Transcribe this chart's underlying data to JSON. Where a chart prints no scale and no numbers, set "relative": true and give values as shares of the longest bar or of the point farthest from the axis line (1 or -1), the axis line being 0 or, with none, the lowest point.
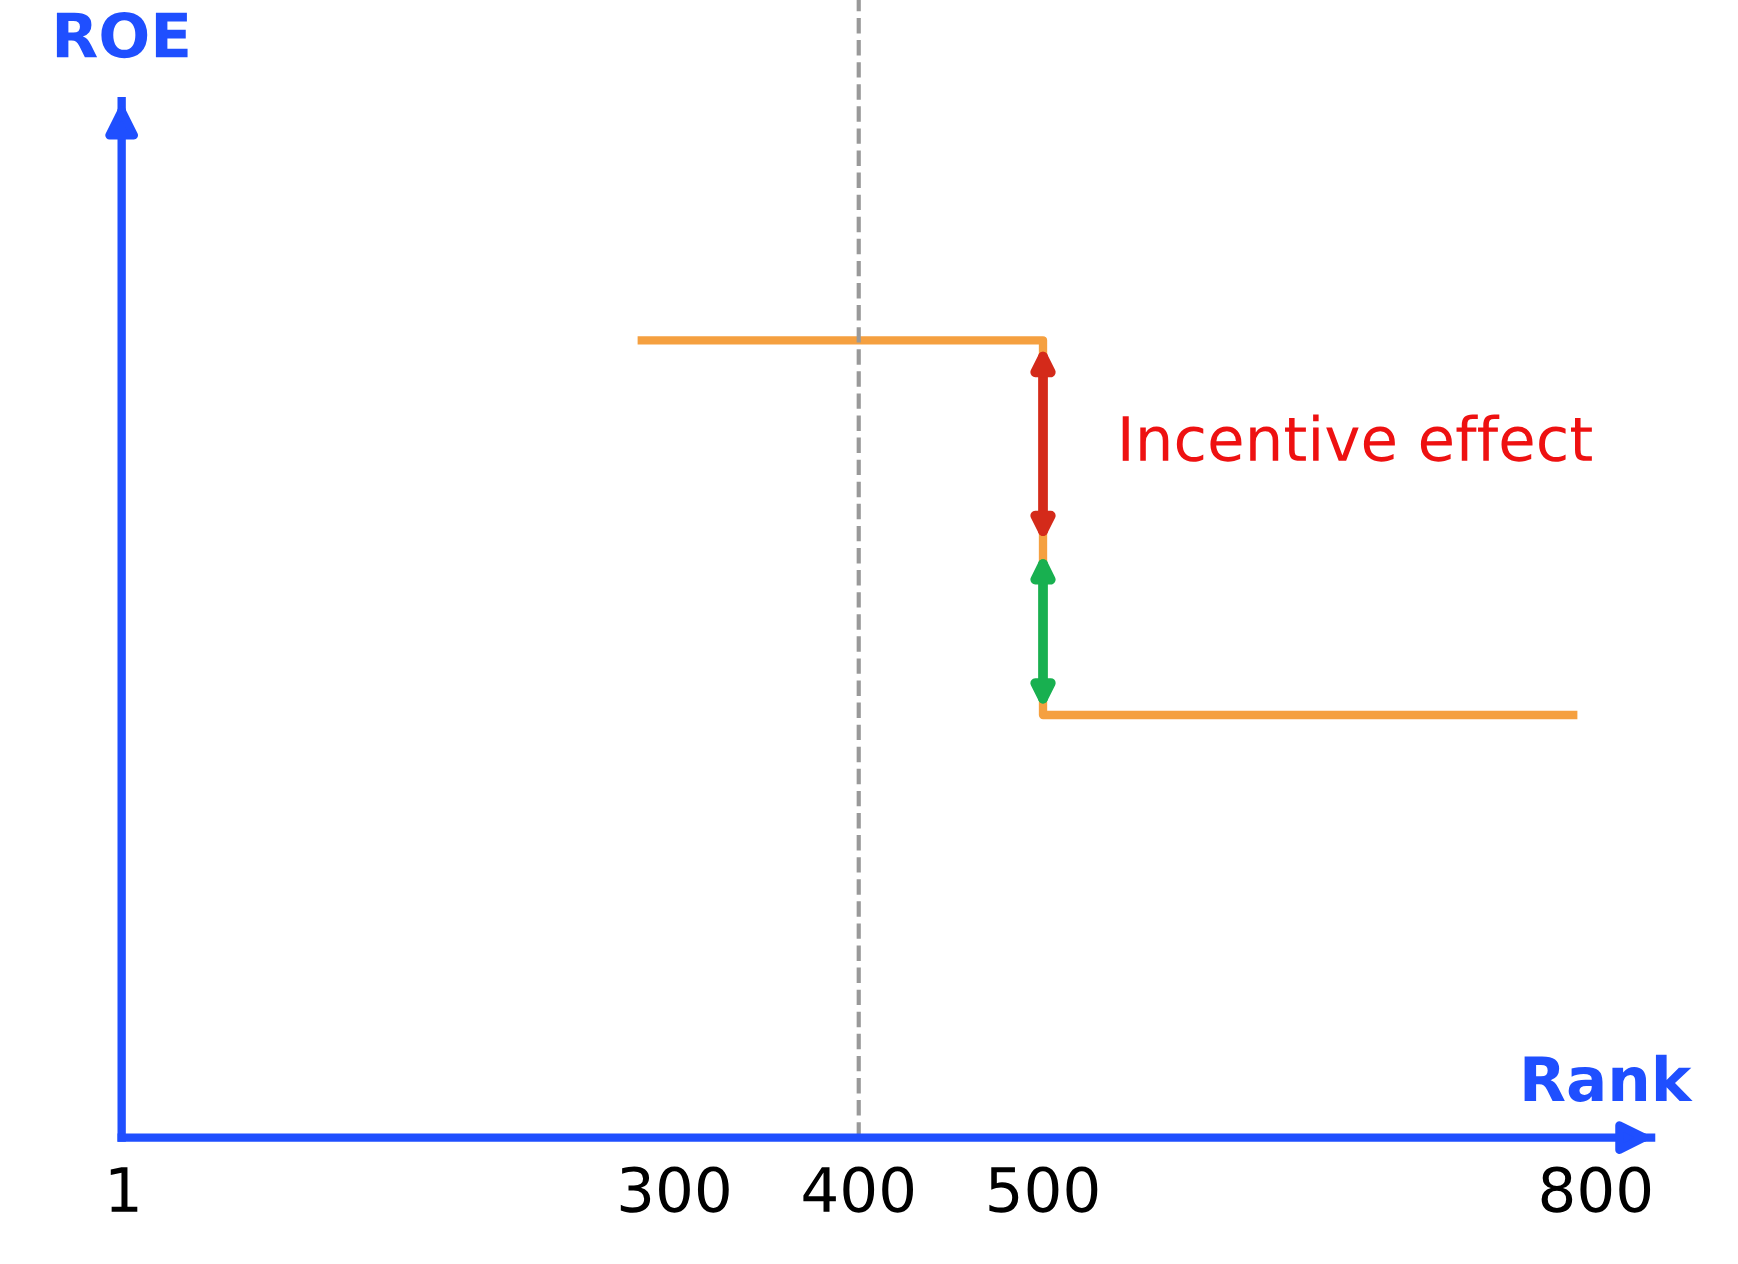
{
  "chart_data": {
    "type": "line",
    "relative": true,
    "xlabel": "Rank",
    "ylabel": "ROE",
    "series": [
      {
        "color": "#f5a040",
        "x": [
          280,
          500,
          500,
          790
        ],
        "values": [
          1,
          1,
          0.53,
          0.53
        ]
      }
    ],
    "xlim": [
      0,
      830
    ],
    "xticks": [
      {
        "value": 1,
        "label": "1"
      },
      {
        "value": 300,
        "label": "300"
      },
      {
        "value": 400,
        "label": "400"
      },
      {
        "value": 500,
        "label": "500"
      },
      {
        "value": 800,
        "label": "800"
      }
    ],
    "ref_lines": [
      {
        "axis": "x",
        "value": 400,
        "color": "#999999",
        "line_style": "dashed"
      }
    ],
    "annotations": [
      {
        "text": "Incentive effect",
        "x": 500,
        "y": 0.74
      }
    ],
    "grid": false,
    "marker": "none",
    "line_style": "solid"
  }
}
